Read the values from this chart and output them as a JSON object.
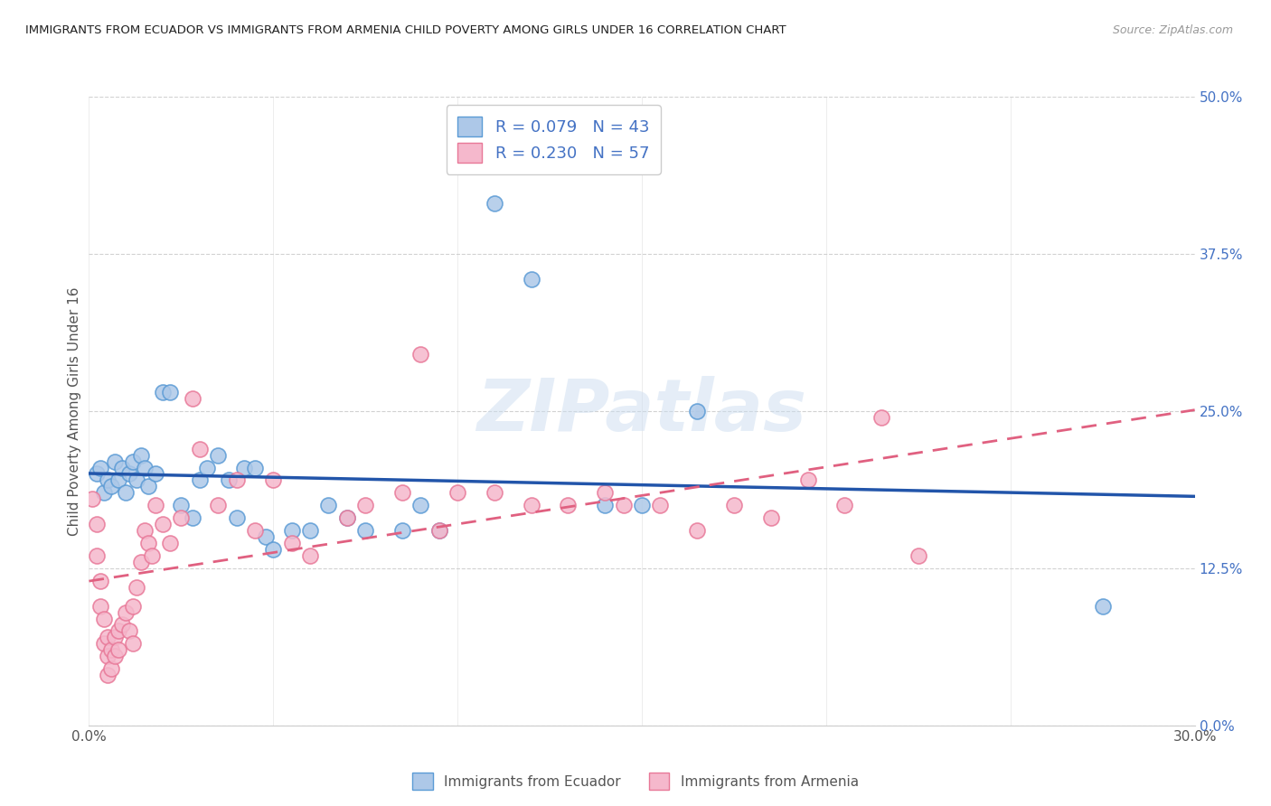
{
  "title": "IMMIGRANTS FROM ECUADOR VS IMMIGRANTS FROM ARMENIA CHILD POVERTY AMONG GIRLS UNDER 16 CORRELATION CHART",
  "source": "Source: ZipAtlas.com",
  "ylabel": "Child Poverty Among Girls Under 16",
  "xlim": [
    0.0,
    0.3
  ],
  "ylim": [
    0.0,
    0.5
  ],
  "ecuador_R": 0.079,
  "ecuador_N": 43,
  "armenia_R": 0.23,
  "armenia_N": 57,
  "ecuador_color": "#adc8e8",
  "armenia_color": "#f5b8cc",
  "ecuador_edge_color": "#5b9bd5",
  "armenia_edge_color": "#e87898",
  "ecuador_line_color": "#2255aa",
  "armenia_line_color": "#e06080",
  "background_color": "#ffffff",
  "watermark": "ZIPatlas",
  "ecuador_x": [
    0.002,
    0.003,
    0.004,
    0.005,
    0.006,
    0.007,
    0.008,
    0.009,
    0.01,
    0.011,
    0.012,
    0.013,
    0.014,
    0.015,
    0.016,
    0.018,
    0.02,
    0.022,
    0.025,
    0.028,
    0.03,
    0.032,
    0.035,
    0.038,
    0.04,
    0.042,
    0.045,
    0.048,
    0.05,
    0.055,
    0.06,
    0.065,
    0.07,
    0.075,
    0.085,
    0.09,
    0.095,
    0.11,
    0.12,
    0.14,
    0.15,
    0.165,
    0.275
  ],
  "ecuador_y": [
    0.2,
    0.205,
    0.185,
    0.195,
    0.19,
    0.21,
    0.195,
    0.205,
    0.185,
    0.2,
    0.21,
    0.195,
    0.215,
    0.205,
    0.19,
    0.2,
    0.265,
    0.265,
    0.175,
    0.165,
    0.195,
    0.205,
    0.215,
    0.195,
    0.165,
    0.205,
    0.205,
    0.15,
    0.14,
    0.155,
    0.155,
    0.175,
    0.165,
    0.155,
    0.155,
    0.175,
    0.155,
    0.415,
    0.355,
    0.175,
    0.175,
    0.25,
    0.095
  ],
  "armenia_x": [
    0.001,
    0.002,
    0.002,
    0.003,
    0.003,
    0.004,
    0.004,
    0.005,
    0.005,
    0.005,
    0.006,
    0.006,
    0.007,
    0.007,
    0.008,
    0.008,
    0.009,
    0.01,
    0.011,
    0.012,
    0.012,
    0.013,
    0.014,
    0.015,
    0.016,
    0.017,
    0.018,
    0.02,
    0.022,
    0.025,
    0.028,
    0.03,
    0.035,
    0.04,
    0.045,
    0.05,
    0.055,
    0.06,
    0.07,
    0.075,
    0.085,
    0.09,
    0.095,
    0.1,
    0.11,
    0.12,
    0.13,
    0.14,
    0.145,
    0.155,
    0.165,
    0.175,
    0.185,
    0.195,
    0.205,
    0.215,
    0.225
  ],
  "armenia_y": [
    0.18,
    0.16,
    0.135,
    0.115,
    0.095,
    0.085,
    0.065,
    0.07,
    0.055,
    0.04,
    0.06,
    0.045,
    0.07,
    0.055,
    0.075,
    0.06,
    0.08,
    0.09,
    0.075,
    0.065,
    0.095,
    0.11,
    0.13,
    0.155,
    0.145,
    0.135,
    0.175,
    0.16,
    0.145,
    0.165,
    0.26,
    0.22,
    0.175,
    0.195,
    0.155,
    0.195,
    0.145,
    0.135,
    0.165,
    0.175,
    0.185,
    0.295,
    0.155,
    0.185,
    0.185,
    0.175,
    0.175,
    0.185,
    0.175,
    0.175,
    0.155,
    0.175,
    0.165,
    0.195,
    0.175,
    0.245,
    0.135
  ]
}
